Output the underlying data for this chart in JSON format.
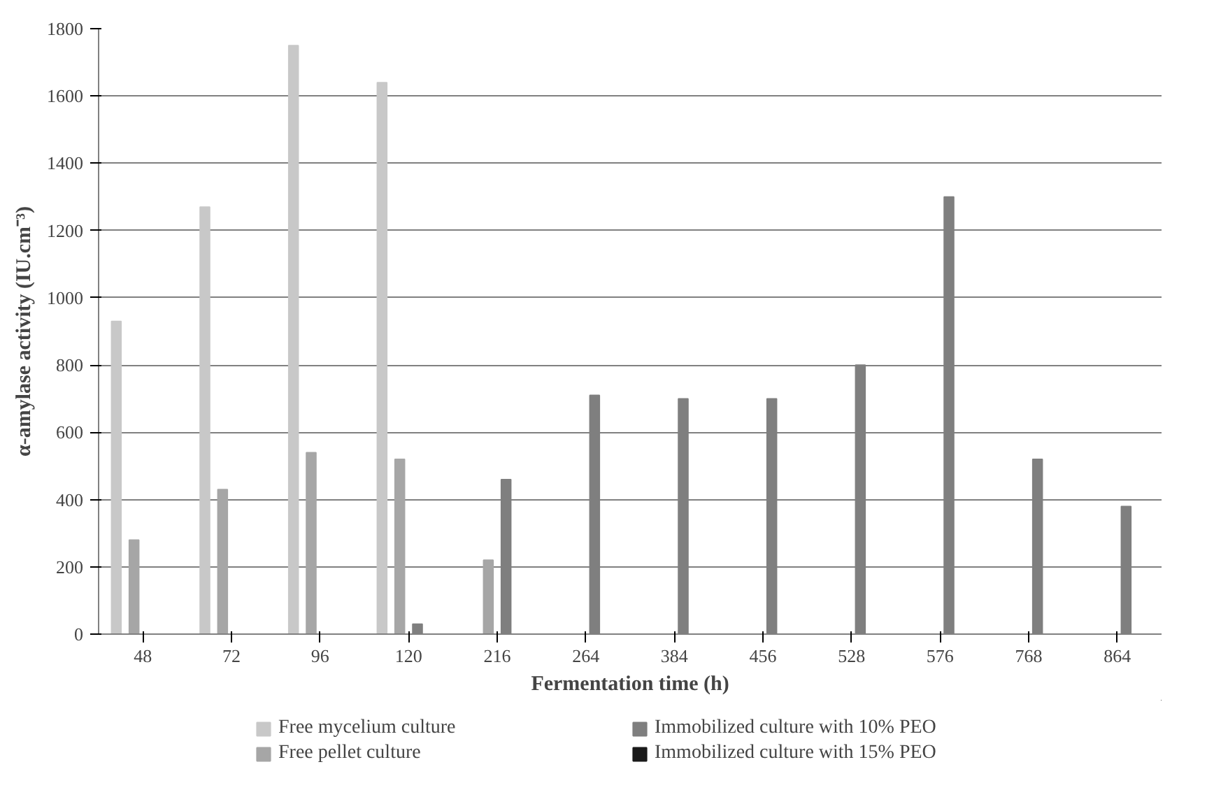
{
  "chart_data": {
    "type": "bar",
    "xlabel": "Fermentation time (h)",
    "ylabel": "α-amylase activity (IU.cm⁻³)",
    "categories": [
      "48",
      "72",
      "96",
      "120",
      "216",
      "264",
      "384",
      "456",
      "528",
      "576",
      "768",
      "864"
    ],
    "series": [
      {
        "name": "Free mycelium culture",
        "color": "#c8c8c8",
        "values": [
          930,
          1270,
          1750,
          1640,
          0,
          0,
          0,
          0,
          0,
          0,
          0,
          0
        ]
      },
      {
        "name": "Free pellet culture",
        "color": "#a6a6a6",
        "values": [
          280,
          430,
          540,
          520,
          220,
          0,
          0,
          0,
          0,
          0,
          0,
          0
        ]
      },
      {
        "name": "Immobilized culture with 10% PEO",
        "color": "#7f7f7f",
        "values": [
          0,
          0,
          0,
          30,
          460,
          710,
          700,
          700,
          800,
          1300,
          520,
          380
        ]
      },
      {
        "name": "Immobilized culture with 15% PEO",
        "color": "#1a1a1a",
        "values": [
          0,
          0,
          0,
          0,
          0,
          0,
          0,
          0,
          0,
          0,
          0,
          0
        ]
      }
    ],
    "ylim": [
      0,
      1800
    ],
    "yticks": [
      0,
      200,
      400,
      600,
      800,
      1000,
      1200,
      1400,
      1600,
      1800
    ],
    "grid": "y",
    "legend": "bottom"
  }
}
